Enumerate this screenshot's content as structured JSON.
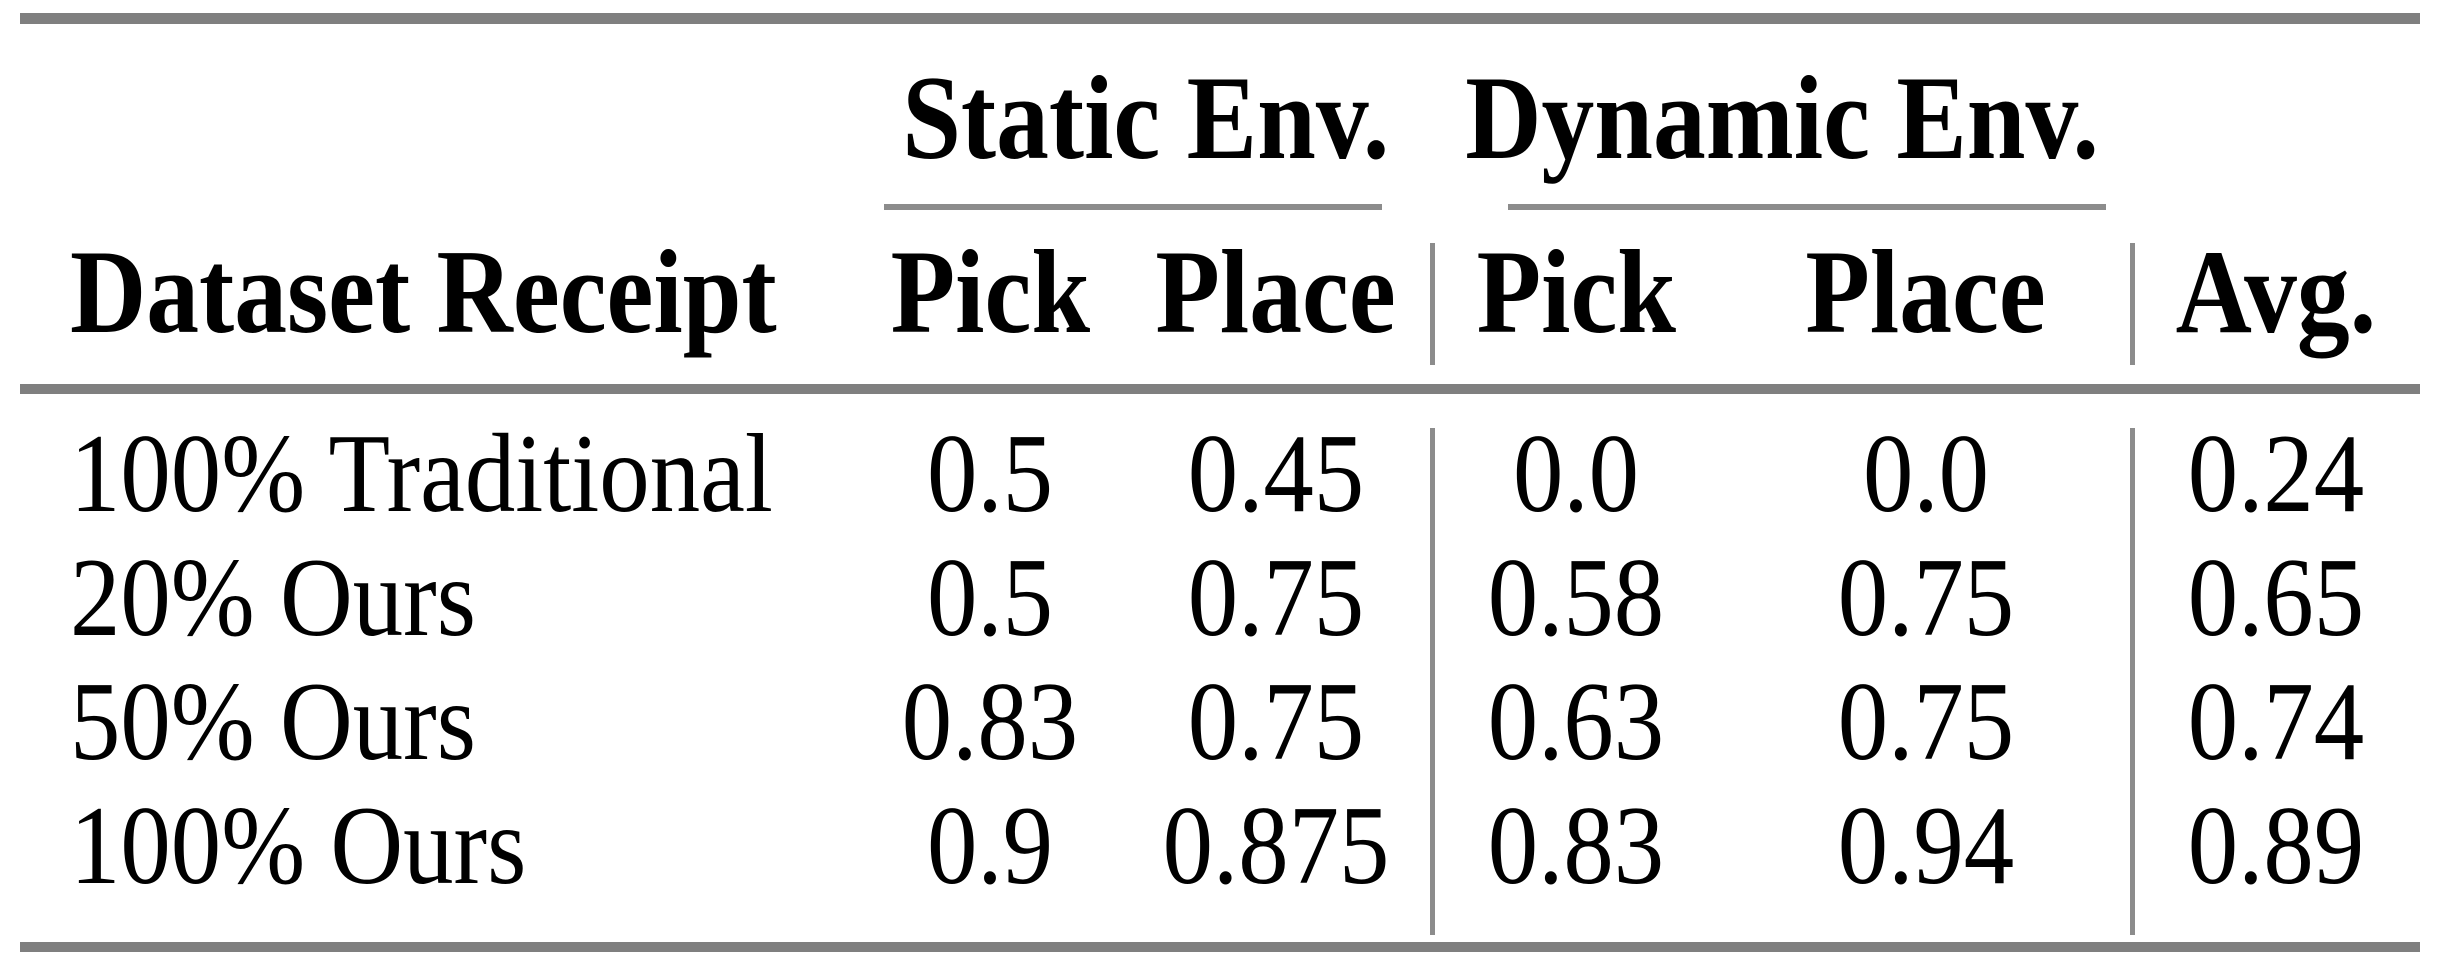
{
  "meta": {
    "background": "#ffffff",
    "text_color": "#000000",
    "rule_color_thick": "#7f7f7f",
    "rule_color_thin": "#8c8c8c"
  },
  "table": {
    "column_groups": [
      {
        "label": "Static Env."
      },
      {
        "label": "Dynamic Env."
      }
    ],
    "headers": {
      "dataset": "Dataset Receipt",
      "static_pick": "Pick",
      "static_place": "Place",
      "dynamic_pick": "Pick",
      "dynamic_place": "Place",
      "avg": "Avg."
    },
    "rows": [
      {
        "dataset": "100% Traditional",
        "static_pick": "0.5",
        "static_place": "0.45",
        "dynamic_pick": "0.0",
        "dynamic_place": "0.0",
        "avg": "0.24"
      },
      {
        "dataset": "20% Ours",
        "static_pick": "0.5",
        "static_place": "0.75",
        "dynamic_pick": "0.58",
        "dynamic_place": "0.75",
        "avg": "0.65"
      },
      {
        "dataset": "50% Ours",
        "static_pick": "0.83",
        "static_place": "0.75",
        "dynamic_pick": "0.63",
        "dynamic_place": "0.75",
        "avg": "0.74"
      },
      {
        "dataset": "100% Ours",
        "static_pick": "0.9",
        "static_place": "0.875",
        "dynamic_pick": "0.83",
        "dynamic_place": "0.94",
        "avg": "0.89"
      }
    ]
  },
  "chart_data": {
    "type": "table",
    "columns": [
      "Dataset Receipt",
      "Static Env. Pick",
      "Static Env. Place",
      "Dynamic Env. Pick",
      "Dynamic Env. Place",
      "Avg."
    ],
    "rows": [
      [
        "100% Traditional",
        0.5,
        0.45,
        0.0,
        0.0,
        0.24
      ],
      [
        "20% Ours",
        0.5,
        0.75,
        0.58,
        0.75,
        0.65
      ],
      [
        "50% Ours",
        0.83,
        0.75,
        0.63,
        0.75,
        0.74
      ],
      [
        "100% Ours",
        0.9,
        0.875,
        0.83,
        0.94,
        0.89
      ]
    ],
    "layout": {
      "column_groups": [
        {
          "label": "Static Env.",
          "spans": [
            "Static Env. Pick",
            "Static Env. Place"
          ]
        },
        {
          "label": "Dynamic Env.",
          "spans": [
            "Dynamic Env. Pick",
            "Dynamic Env. Place"
          ]
        }
      ]
    }
  }
}
